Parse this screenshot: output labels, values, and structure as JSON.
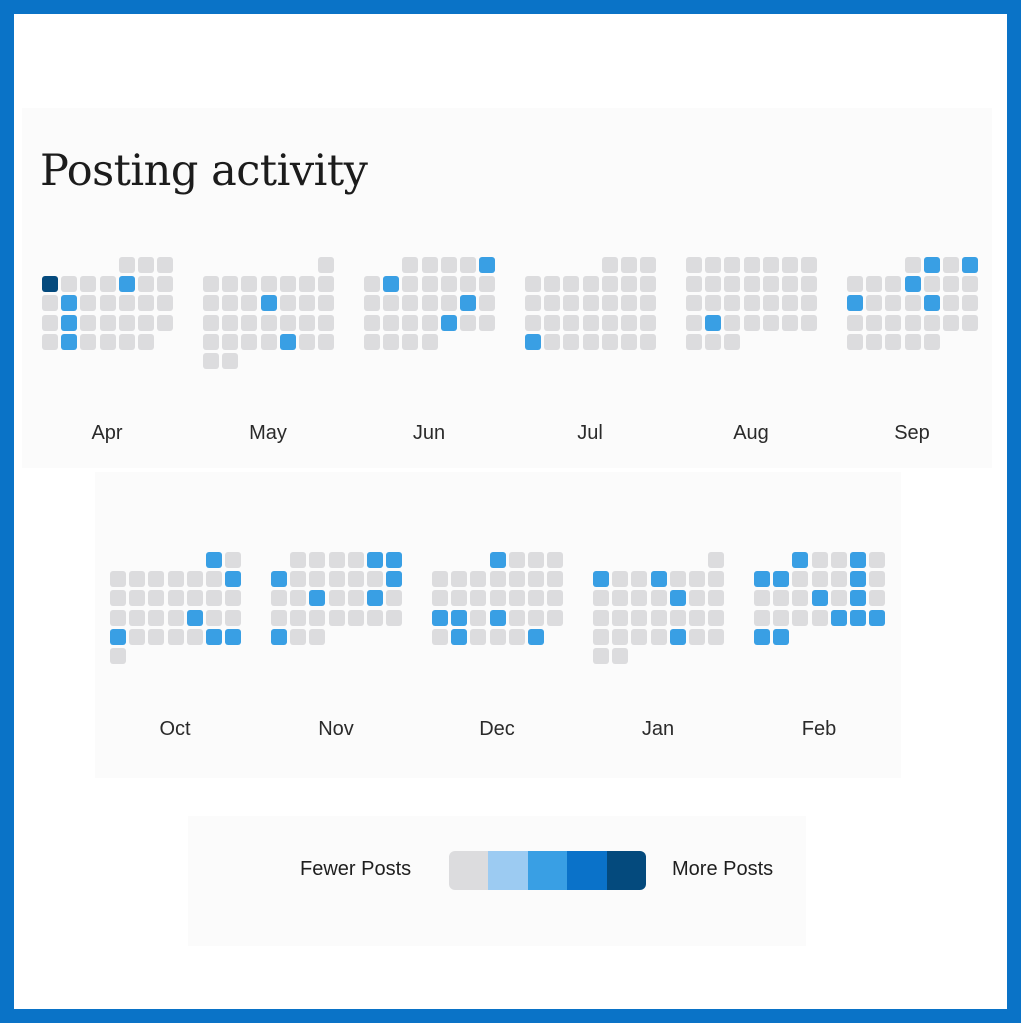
{
  "page_title": "Posting activity",
  "colors": {
    "frame": "#0a73c7",
    "panel": "#fbfbfb",
    "levels": [
      "#dcdcde",
      "#9ccbf2",
      "#399fe4",
      "#0a72c9",
      "#044a7d"
    ]
  },
  "legend": {
    "fewer_label": "Fewer Posts",
    "more_label": "More Posts"
  },
  "chart_data": {
    "type": "heatmap",
    "title": "Posting activity",
    "legend": [
      "Fewer Posts",
      "More Posts"
    ],
    "levels": [
      0,
      1,
      2,
      3,
      4
    ],
    "months": [
      {
        "label": "Apr",
        "start_col": 4,
        "days": 30,
        "active": {
          "4": 4,
          "8": 2,
          "12": 2,
          "19": 2,
          "26": 2
        }
      },
      {
        "label": "May",
        "start_col": 6,
        "days": 31,
        "active": {
          "12": 2,
          "27": 2
        }
      },
      {
        "label": "Jun",
        "start_col": 2,
        "days": 30,
        "active": {
          "5": 2,
          "7": 2,
          "18": 2,
          "24": 2
        }
      },
      {
        "label": "Jul",
        "start_col": 4,
        "days": 31,
        "active": {
          "25": 2
        }
      },
      {
        "label": "Aug",
        "start_col": 0,
        "days": 31,
        "active": {
          "23": 2
        }
      },
      {
        "label": "Sep",
        "start_col": 3,
        "days": 30,
        "active": {
          "2": 2,
          "4": 2,
          "8": 2,
          "12": 2,
          "16": 2
        }
      },
      {
        "label": "Oct",
        "start_col": 5,
        "days": 31,
        "active": {
          "1": 2,
          "9": 2,
          "21": 2,
          "24": 2,
          "29": 2,
          "30": 2
        }
      },
      {
        "label": "Nov",
        "start_col": 1,
        "days": 30,
        "active": {
          "5": 2,
          "6": 2,
          "7": 2,
          "13": 2,
          "16": 2,
          "19": 2,
          "28": 2
        }
      },
      {
        "label": "Dec",
        "start_col": 3,
        "days": 31,
        "active": {
          "1": 2,
          "19": 2,
          "20": 2,
          "22": 2,
          "27": 2,
          "31": 2
        }
      },
      {
        "label": "Jan",
        "start_col": 6,
        "days": 31,
        "active": {
          "2": 2,
          "5": 2,
          "13": 2,
          "27": 2
        }
      },
      {
        "label": "Feb",
        "start_col": 2,
        "days": 28,
        "active": {
          "1": 2,
          "4": 2,
          "6": 2,
          "7": 2,
          "11": 2,
          "16": 2,
          "18": 2,
          "24": 2,
          "25": 2,
          "26": 2,
          "27": 2,
          "28": 2
        }
      }
    ]
  }
}
